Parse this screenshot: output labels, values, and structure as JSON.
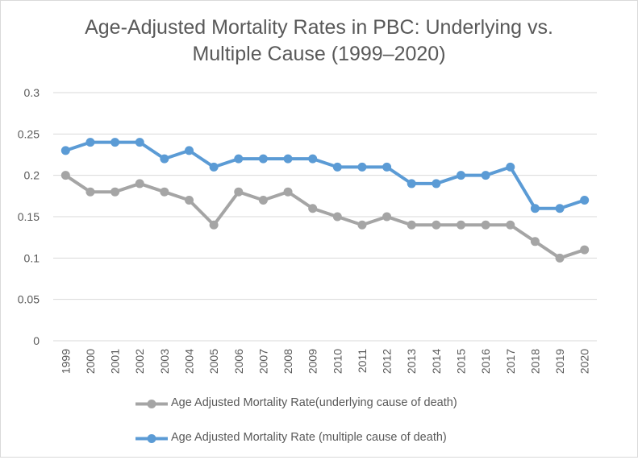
{
  "chart_data": {
    "type": "line",
    "title_lines": [
      "Age-Adjusted Mortality Rates in PBC: Underlying vs.",
      "Multiple Cause (1999–2020)"
    ],
    "categories": [
      "1999",
      "2000",
      "2001",
      "2002",
      "2003",
      "2004",
      "2005",
      "2006",
      "2007",
      "2008",
      "2009",
      "2010",
      "2011",
      "2012",
      "2013",
      "2014",
      "2015",
      "2016",
      "2017",
      "2018",
      "2019",
      "2020"
    ],
    "y_ticks": [
      "0",
      "0.05",
      "0.1",
      "0.15",
      "0.2",
      "0.25",
      "0.3"
    ],
    "ylim": [
      0,
      0.3
    ],
    "grid": true,
    "legend_position": "bottom",
    "series": [
      {
        "name": "Age Adjusted Mortality Rate(underlying cause of death)",
        "color": "#a5a5a5",
        "values": [
          0.2,
          0.18,
          0.18,
          0.19,
          0.18,
          0.17,
          0.14,
          0.18,
          0.17,
          0.18,
          0.16,
          0.15,
          0.14,
          0.15,
          0.14,
          0.14,
          0.14,
          0.14,
          0.14,
          0.12,
          0.1,
          0.11
        ]
      },
      {
        "name": "Age Adjusted Mortality Rate (multiple cause of death)",
        "color": "#5b9bd5",
        "values": [
          0.23,
          0.24,
          0.24,
          0.24,
          0.22,
          0.23,
          0.21,
          0.22,
          0.22,
          0.22,
          0.22,
          0.21,
          0.21,
          0.21,
          0.19,
          0.19,
          0.2,
          0.2,
          0.21,
          0.16,
          0.16,
          0.17
        ]
      }
    ]
  }
}
